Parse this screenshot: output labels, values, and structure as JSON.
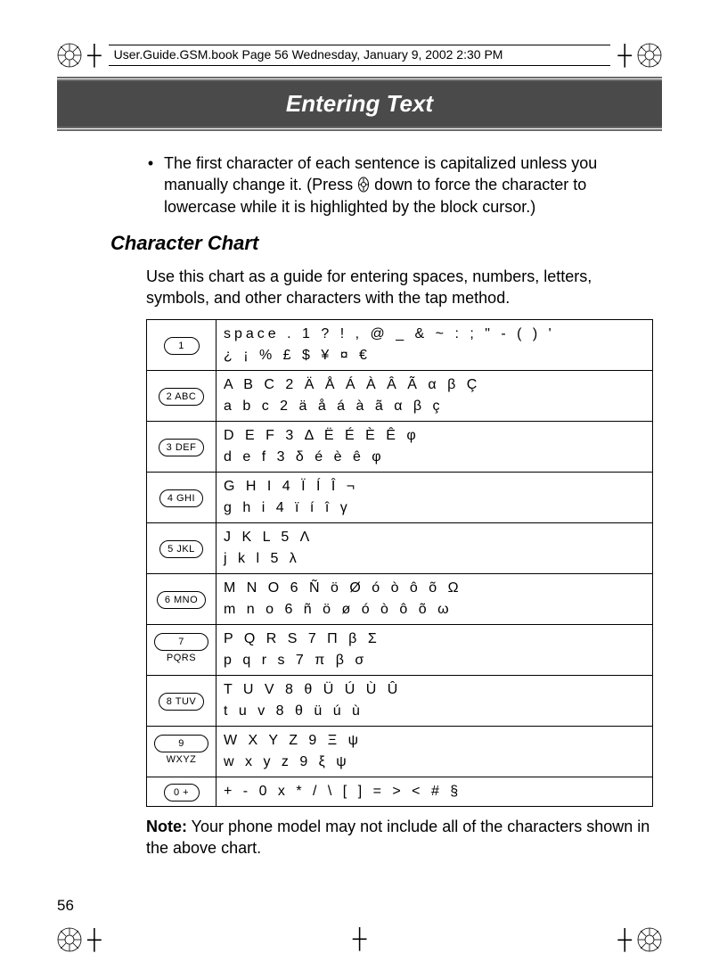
{
  "header": {
    "file_line": "User.Guide.GSM.book  Page 56  Wednesday, January 9, 2002  2:30 PM"
  },
  "banner": {
    "title": "Entering Text"
  },
  "bullet": {
    "text_before": "The first character of each sentence is capitalized unless you manually change it. (Press ",
    "text_after": " down to force the character to lowercase while it is highlighted by the block cursor.)"
  },
  "subheading": "Character Chart",
  "intro": "Use this chart as a guide for entering spaces, numbers, letters, symbols, and other characters with the tap method.",
  "keys": [
    {
      "label": "1",
      "line1": "space  .  1  ?  !  ,  @  _  &  ~  :  ;  \"  -  (  )  '",
      "line2": "¿  ¡  %  £  $  ¥  ¤  €"
    },
    {
      "label": "2 ABC",
      "line1": "A  B  C  2  Ä  Å  Á  À  Â  Ã  α  β  Ç",
      "line2": "a  b  c  2  ä  å  á  à  ã  α  β  ç"
    },
    {
      "label": "3 DEF",
      "line1": "D  E  F  3  Δ  Ë  É  È  Ê  φ",
      "line2": "d  e  f  3  δ  é  è  ê  φ"
    },
    {
      "label": "4 GHI",
      "line1": "G  H  I  4  Ï  Í  Î  ¬",
      "line2": "g  h  i  4  ï  í  î  γ"
    },
    {
      "label": "5 JKL",
      "line1": "J  K  L  5  Λ",
      "line2": "j  k  l  5  λ"
    },
    {
      "label": "6 MNO",
      "line1": "M  N  O  6  Ñ  ö  Ø  ó  ò  ô  õ  Ω",
      "line2": "m  n  o  6  ñ  ö  ø  ó  ò  ô  õ  ω"
    },
    {
      "label": "7 PQRS",
      "line1": "P  Q  R  S  7  Π  β  Σ",
      "line2": "p  q  r  s  7  π  β  σ"
    },
    {
      "label": "8 TUV",
      "line1": "T  U  V  8  θ  Ü  Ú  Ù  Û",
      "line2": "t  u  v  8  θ  ü  ú  ù"
    },
    {
      "label": "9 WXYZ",
      "line1": "W  X  Y  Z  9  Ξ  ψ",
      "line2": "w  x  y  z  9  ξ  ψ"
    },
    {
      "label": "0 +",
      "line1": "+  -  0  x  *  /  \\  [  ]  =  >  <  #  §",
      "line2": ""
    }
  ],
  "note": {
    "label": "Note:",
    "text": " Your phone model may not include all of the characters shown in the above chart."
  },
  "page_number": "56",
  "colors": {
    "banner_bg": "#4a4a4a",
    "banner_line": "#6b6b6b",
    "text": "#000000",
    "page_bg": "#ffffff"
  }
}
